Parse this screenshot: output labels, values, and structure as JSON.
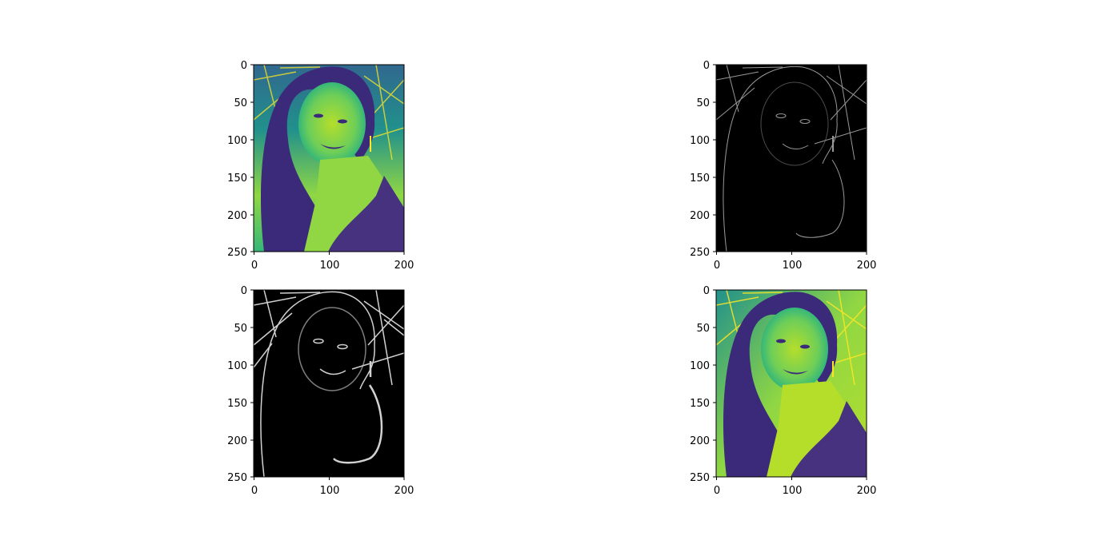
{
  "chart_data": [
    {
      "type": "heatmap",
      "colormap": "viridis",
      "content": "grayscale portrait image shown with viridis colormap",
      "x_ticks": [
        "0",
        "100",
        "200"
      ],
      "y_ticks": [
        "0",
        "50",
        "100",
        "150",
        "200",
        "250"
      ],
      "xlim": [
        0,
        200
      ],
      "ylim": [
        250,
        0
      ],
      "title": "",
      "xlabel": "",
      "ylabel": ""
    },
    {
      "type": "heatmap",
      "colormap": "gray",
      "content": "edge magnitude image of the portrait (white edges on black)",
      "x_ticks": [
        "0",
        "100",
        "200"
      ],
      "y_ticks": [
        "0",
        "50",
        "100",
        "150",
        "200",
        "250"
      ],
      "xlim": [
        0,
        200
      ],
      "ylim": [
        250,
        0
      ],
      "title": "",
      "xlabel": "",
      "ylabel": ""
    },
    {
      "type": "heatmap",
      "colormap": "gray",
      "content": "edge magnitude image of the portrait (white edges on black, brighter)",
      "x_ticks": [
        "0",
        "100",
        "200"
      ],
      "y_ticks": [
        "0",
        "50",
        "100",
        "150",
        "200",
        "250"
      ],
      "xlim": [
        0,
        200
      ],
      "ylim": [
        250,
        0
      ],
      "title": "",
      "xlabel": "",
      "ylabel": ""
    },
    {
      "type": "heatmap",
      "colormap": "viridis",
      "content": "sharpened grayscale portrait shown with viridis colormap",
      "x_ticks": [
        "0",
        "100",
        "200"
      ],
      "y_ticks": [
        "0",
        "50",
        "100",
        "150",
        "200",
        "250"
      ],
      "xlim": [
        0,
        200
      ],
      "ylim": [
        250,
        0
      ],
      "title": "",
      "xlabel": "",
      "ylabel": ""
    }
  ],
  "colors": {
    "viridis_dark": "#440154",
    "viridis_purple": "#3b2a7a",
    "viridis_blue": "#31688e",
    "viridis_teal": "#21918c",
    "viridis_green": "#35b779",
    "viridis_lime": "#90d743",
    "viridis_yellow": "#fde725",
    "edge_black": "#000000",
    "edge_white": "#e8e8e8"
  }
}
